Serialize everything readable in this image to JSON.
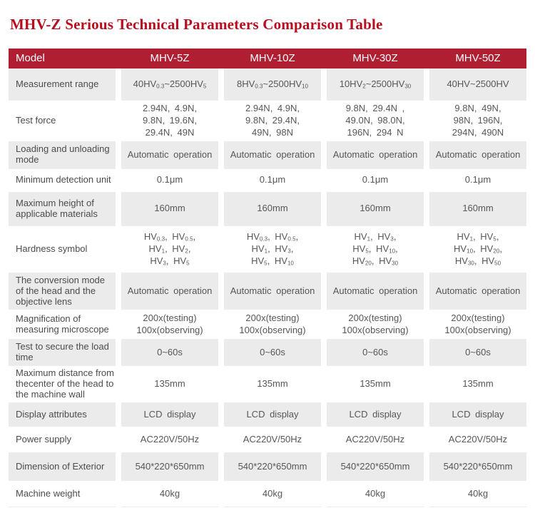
{
  "page": {
    "title": "MHV-Z Serious Technical Parameters Comparison Table"
  },
  "colors": {
    "header_bg": "#b01e32",
    "title": "#b70d1e",
    "row_alt_bg": "#ebebeb",
    "label_text": "#4b4c4e",
    "data_text": "#55575a",
    "header_text": "#ffffff"
  },
  "table": {
    "columns": [
      "Model",
      "MHV-5Z",
      "MHV-10Z",
      "MHV-30Z",
      "MHV-50Z"
    ],
    "rows": [
      {
        "label": "Measurement range",
        "cells": [
          [
            "40HV_{0.3}~2500HV_{5}"
          ],
          [
            "8HV_{0.3}~2500HV_{10}"
          ],
          [
            "10HV_{2}~2500HV_{30}"
          ],
          [
            "40HV~2500HV"
          ]
        ]
      },
      {
        "label": "Test force",
        "cells": [
          [
            "2.94N, 4.9N,",
            "9.8N, 19.6N,",
            "29.4N, 49N"
          ],
          [
            "2.94N, 4.9N,",
            "9.8N, 29.4N,",
            "49N, 98N"
          ],
          [
            "9.8N, 29.4N ,",
            "49.0N, 98.0N,",
            "196N, 294 N"
          ],
          [
            "9.8N, 49N,",
            "98N, 196N,",
            "294N, 490N"
          ]
        ]
      },
      {
        "label": "Loading and unloading mode",
        "cells": [
          [
            "Automatic operation"
          ],
          [
            "Automatic operation"
          ],
          [
            "Automatic operation"
          ],
          [
            "Automatic operation"
          ]
        ]
      },
      {
        "label": "Minimum detection unit",
        "cells": [
          [
            "0.1μm"
          ],
          [
            "0.1μm"
          ],
          [
            "0.1μm"
          ],
          [
            "0.1μm"
          ]
        ]
      },
      {
        "label": "Maximum height of applicable materials",
        "cells": [
          [
            "160mm"
          ],
          [
            "160mm"
          ],
          [
            "160mm"
          ],
          [
            "160mm"
          ]
        ]
      },
      {
        "label": "Hardness symbol",
        "cells": [
          [
            "HV_{0.3}, HV_{0.5},",
            "HV_{1}, HV_{2},",
            "HV_{3}, HV_{5}"
          ],
          [
            "HV_{0.3}, HV_{0.5},",
            "HV_{1}, HV_{3},",
            "HV_{5}, HV_{10}"
          ],
          [
            "HV_{1}, HV_{3},",
            "HV_{5}, HV_{10},",
            "HV_{20}, HV_{30}"
          ],
          [
            "HV_{1}, HV_{5},",
            "HV_{10}, HV_{20},",
            "HV_{30}, HV_{50}"
          ]
        ]
      },
      {
        "label": "The conversion mode of the head and the objective lens",
        "cells": [
          [
            "Automatic operation"
          ],
          [
            "Automatic operation"
          ],
          [
            "Automatic operation"
          ],
          [
            "Automatic operation"
          ]
        ]
      },
      {
        "label": "Magnification of measuring microscope",
        "cells": [
          [
            "200x(testing)",
            "100x(observing)"
          ],
          [
            "200x(testing)",
            "100x(observing)"
          ],
          [
            "200x(testing)",
            "100x(observing)"
          ],
          [
            "200x(testing)",
            "100x(observing)"
          ]
        ]
      },
      {
        "label": "Test to secure the load time",
        "cells": [
          [
            "0~60s"
          ],
          [
            "0~60s"
          ],
          [
            "0~60s"
          ],
          [
            "0~60s"
          ]
        ]
      },
      {
        "label": "Maximum distance from thecenter of the head to the machine wall",
        "cells": [
          [
            "135mm"
          ],
          [
            "135mm"
          ],
          [
            "135mm"
          ],
          [
            "135mm"
          ]
        ]
      },
      {
        "label": "Display attributes",
        "cells": [
          [
            "LCD display"
          ],
          [
            "LCD display"
          ],
          [
            "LCD display"
          ],
          [
            "LCD display"
          ]
        ]
      },
      {
        "label": "Power supply",
        "cells": [
          [
            "AC220V/50Hz"
          ],
          [
            "AC220V/50Hz"
          ],
          [
            "AC220V/50Hz"
          ],
          [
            "AC220V/50Hz"
          ]
        ]
      },
      {
        "label": "Dimension of Exterior",
        "cells": [
          [
            "540*220*650mm"
          ],
          [
            "540*220*650mm"
          ],
          [
            "540*220*650mm"
          ],
          [
            "540*220*650mm"
          ]
        ]
      },
      {
        "label": "Machine weight",
        "cells": [
          [
            "40kg"
          ],
          [
            "40kg"
          ],
          [
            "40kg"
          ],
          [
            "40kg"
          ]
        ]
      }
    ]
  }
}
